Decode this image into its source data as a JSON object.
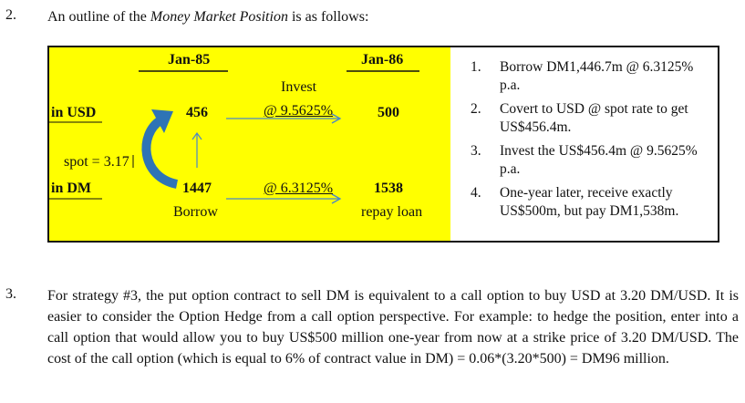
{
  "section2": {
    "number": "2.",
    "intro_before": "An outline of the ",
    "intro_emph": "Money Market Position",
    "intro_after": " is as follows:"
  },
  "diagram": {
    "col1_header": "Jan-85",
    "col2_header": "Jan-86",
    "row_usd_label": "in USD",
    "row_dm_label": "in DM",
    "usd_jan85": "456",
    "usd_jan86": "500",
    "dm_jan85": "1447",
    "dm_jan86": "1538",
    "invest_label": "Invest",
    "invest_rate": "@ 9.5625%",
    "borrow_rate": "@ 6.3125%",
    "borrow_label": "Borrow",
    "repay_label": "repay loan",
    "spot_label": "spot = 3.17",
    "arrow_color": "#4a86c8",
    "highlight_color": "#ffff00"
  },
  "steps": [
    {
      "n": "1.",
      "text": "Borrow DM1,446.7m @ 6.3125% p.a."
    },
    {
      "n": "2.",
      "text": "Covert to USD @ spot rate to get US$456.4m."
    },
    {
      "n": "3.",
      "text": "Invest the US$456.4m @ 9.5625% p.a."
    },
    {
      "n": "4.",
      "text": "One-year later, receive exactly US$500m, but pay DM1,538m."
    }
  ],
  "section3": {
    "number": "3.",
    "text": "For strategy #3, the put option contract to sell DM is equivalent to a call option to buy USD at 3.20 DM/USD. It is easier to consider the Option Hedge from a call option perspective. For example: to hedge the position, enter into a call option that would allow you to buy US$500 million one-year from now at a strike price of 3.20 DM/USD. The cost of the call option (which is equal to 6% of contract value in DM) = 0.06*(3.20*500) = DM96 million."
  }
}
